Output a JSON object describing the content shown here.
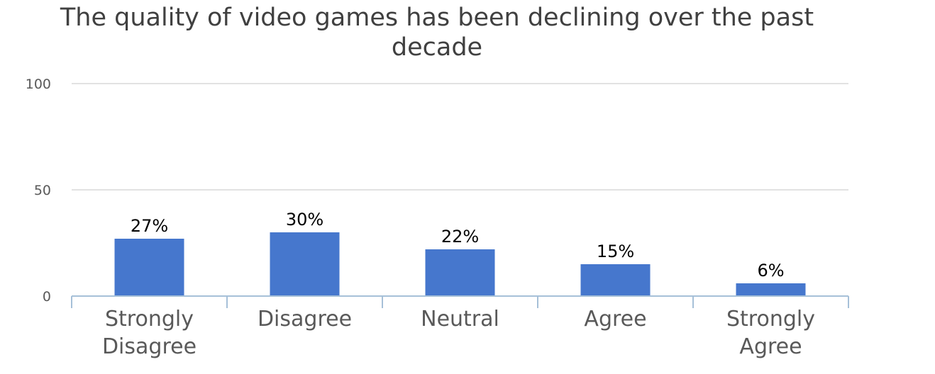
{
  "chart_data": {
    "type": "bar",
    "title": "The quality of video games has been declining over the past decade",
    "categories": [
      [
        "Strongly",
        "Disagree"
      ],
      [
        "Disagree"
      ],
      [
        "Neutral"
      ],
      [
        "Agree"
      ],
      [
        "Strongly",
        "Agree"
      ]
    ],
    "values": [
      27,
      30,
      22,
      15,
      6
    ],
    "data_labels": [
      "27%",
      "30%",
      "22%",
      "15%",
      "6%"
    ],
    "ylim": [
      0,
      100
    ],
    "yticks": [
      0,
      50,
      100
    ],
    "ytick_labels": [
      "0",
      "50",
      "100"
    ],
    "grid": true,
    "xlabel": "",
    "ylabel": "",
    "colors": {
      "bar": "#4677CD",
      "grid": "#D9D9D9",
      "axis": "#A6C0D8"
    }
  }
}
